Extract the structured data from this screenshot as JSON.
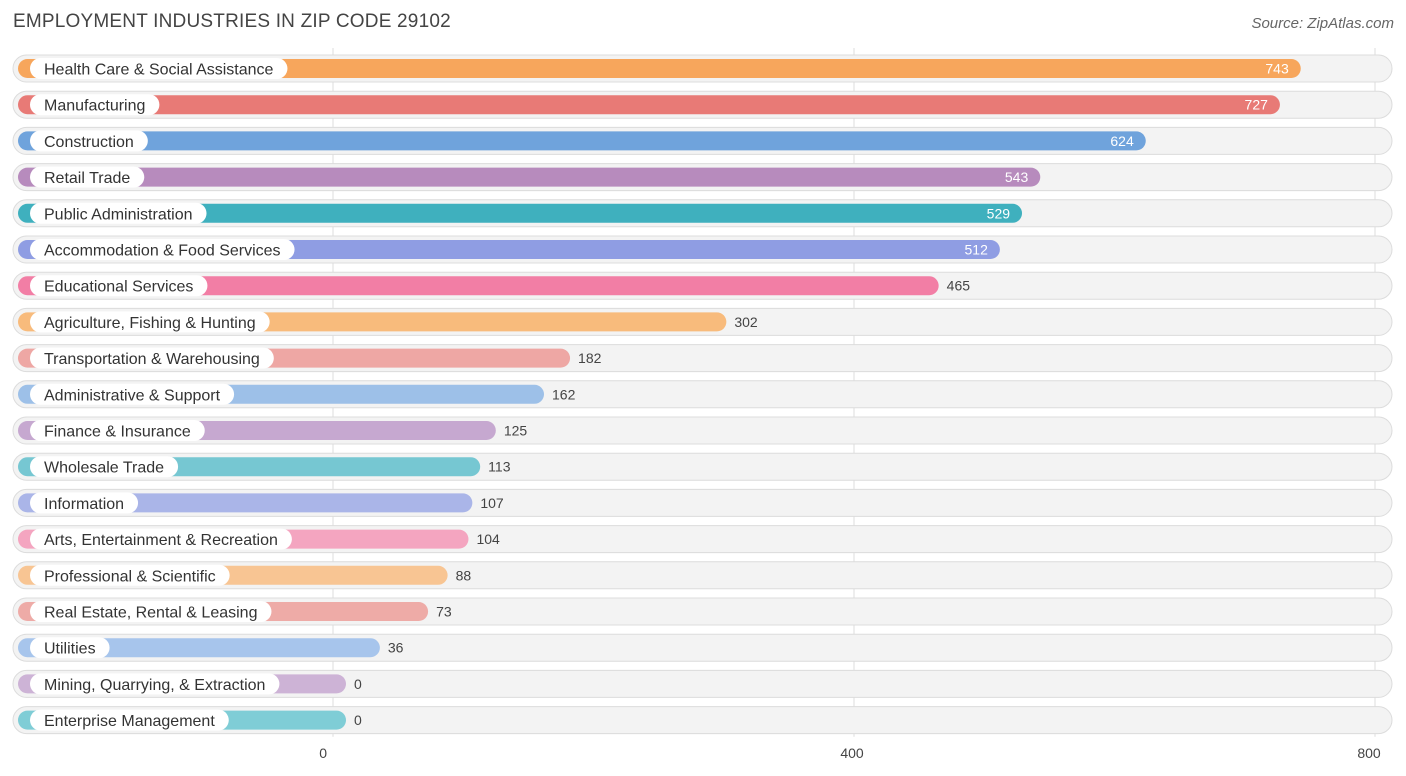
{
  "title": "EMPLOYMENT INDUSTRIES IN ZIP CODE 29102",
  "source": "Source: ZipAtlas.com",
  "chart_data": {
    "type": "bar",
    "orientation": "horizontal",
    "title": "EMPLOYMENT INDUSTRIES IN ZIP CODE 29102",
    "xlabel": "",
    "ylabel": "",
    "xlim": [
      0,
      800
    ],
    "xticks": [
      0,
      400,
      800
    ],
    "grid": true,
    "categories": [
      "Health Care & Social Assistance",
      "Manufacturing",
      "Construction",
      "Retail Trade",
      "Public Administration",
      "Accommodation & Food Services",
      "Educational Services",
      "Agriculture, Fishing & Hunting",
      "Transportation & Warehousing",
      "Administrative & Support",
      "Finance & Insurance",
      "Wholesale Trade",
      "Information",
      "Arts, Entertainment & Recreation",
      "Professional & Scientific",
      "Real Estate, Rental & Leasing",
      "Utilities",
      "Mining, Quarrying, & Extraction",
      "Enterprise Management"
    ],
    "values": [
      743,
      727,
      624,
      543,
      529,
      512,
      465,
      302,
      182,
      162,
      125,
      113,
      107,
      104,
      88,
      73,
      36,
      0,
      0
    ],
    "colors": [
      "#f7a65c",
      "#e87a76",
      "#6fa3dc",
      "#b78bbd",
      "#3fb0be",
      "#8f9de3",
      "#f27ea5",
      "#f8bb7c",
      "#eea7a4",
      "#9dc0e8",
      "#c6a8d0",
      "#76c7d2",
      "#aab5e8",
      "#f4a5c0",
      "#f8c593",
      "#eeaba7",
      "#a7c5ec",
      "#cdb3d6",
      "#7fcdd6"
    ]
  }
}
